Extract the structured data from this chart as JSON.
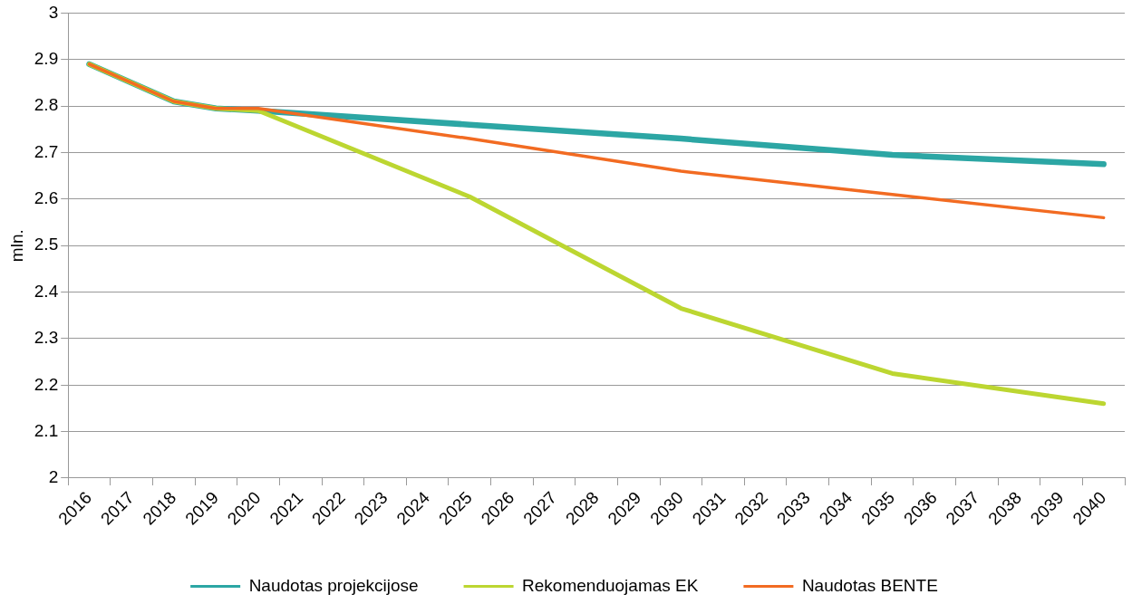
{
  "chart_data": {
    "type": "line",
    "ylabel": "mln.",
    "categories": [
      "2016",
      "2017",
      "2018",
      "2019",
      "2020",
      "2021",
      "2022",
      "2023",
      "2024",
      "2025",
      "2026",
      "2027",
      "2028",
      "2029",
      "2030",
      "2031",
      "2032",
      "2033",
      "2034",
      "2035",
      "2036",
      "2037",
      "2038",
      "2039",
      "2040"
    ],
    "series": [
      {
        "name": "Naudotas projekcijose",
        "color": "#2ca6a4",
        "values": [
          2.89,
          null,
          2.81,
          2.795,
          2.79,
          null,
          null,
          null,
          null,
          2.76,
          null,
          null,
          null,
          null,
          2.73,
          null,
          null,
          null,
          null,
          2.695,
          null,
          null,
          null,
          null,
          2.675
        ]
      },
      {
        "name": "Rekomenduojamas EK",
        "color": "#bcd631",
        "values": [
          2.89,
          null,
          2.81,
          2.795,
          2.79,
          null,
          null,
          null,
          null,
          2.605,
          null,
          null,
          null,
          null,
          2.365,
          null,
          null,
          null,
          null,
          2.225,
          null,
          null,
          null,
          null,
          2.16
        ]
      },
      {
        "name": "Naudotas BENTE",
        "color": "#f26b22",
        "values": [
          2.89,
          null,
          2.81,
          2.795,
          2.795,
          null,
          null,
          null,
          null,
          2.73,
          null,
          null,
          null,
          null,
          2.66,
          null,
          null,
          null,
          null,
          2.61,
          null,
          null,
          null,
          null,
          2.56
        ]
      }
    ],
    "ylim": [
      2,
      3
    ],
    "yticks": [
      2,
      2.1,
      2.2,
      2.3,
      2.4,
      2.5,
      2.6,
      2.7,
      2.8,
      2.9,
      3
    ],
    "grid": "y",
    "legend": "bottom",
    "marker": "none",
    "line_style": "solid"
  }
}
